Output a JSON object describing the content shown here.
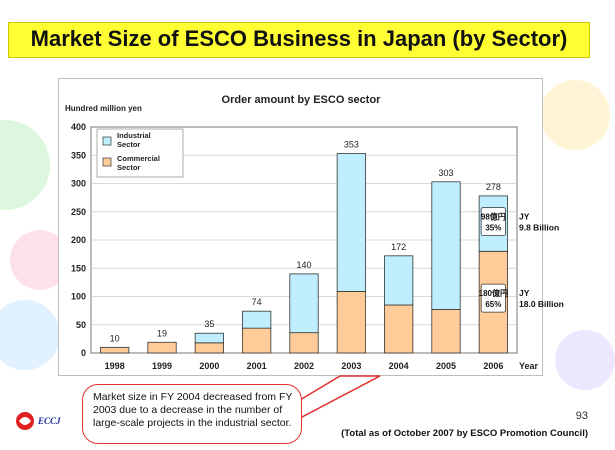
{
  "slide": {
    "title": "Market Size of ESCO Business in Japan (by Sector)",
    "note": "Market size in FY 2004 decreased from FY 2003 due to a decrease in the number of large-scale projects in the industrial sector.",
    "source": "(Total as of October 2007 by ESCO Promotion Council)",
    "page_number": "93",
    "logo_text": "ECCJ"
  },
  "colors": {
    "industrial": "#bfefff",
    "commercial": "#ffcc99",
    "title_bar": "#ffff33",
    "note_border": "#e03030"
  },
  "chart_data": {
    "type": "bar",
    "stacked": true,
    "title": "Order amount by ESCO sector",
    "ylabel": "Hundred million yen",
    "xlabel": "Year",
    "ylim": [
      0,
      400
    ],
    "yticks": [
      0,
      50,
      100,
      150,
      200,
      250,
      300,
      350,
      400
    ],
    "grid": true,
    "categories": [
      "1998",
      "1999",
      "2000",
      "2001",
      "2002",
      "2003",
      "2004",
      "2005",
      "2006"
    ],
    "totals": [
      10,
      19,
      35,
      74,
      140,
      353,
      172,
      303,
      278
    ],
    "series": [
      {
        "name": "Commercial Sector",
        "values": [
          10,
          19,
          18,
          44,
          36,
          109,
          85,
          77,
          180
        ]
      },
      {
        "name": "Industrial Sector",
        "values": [
          0,
          0,
          17,
          30,
          104,
          244,
          87,
          226,
          98
        ]
      }
    ],
    "legend": [
      "Industrial Sector",
      "Commercial Sector"
    ],
    "legend_position": "top-left",
    "annotations": [
      {
        "year": "2006",
        "segment": "Industrial Sector",
        "label_jp": "98億円",
        "pct": "35%",
        "label_en": "JY 9.8 Billion"
      },
      {
        "year": "2006",
        "segment": "Commercial Sector",
        "label_jp": "180億円",
        "pct": "65%",
        "label_en": "JY 18.0 Billion"
      }
    ]
  }
}
